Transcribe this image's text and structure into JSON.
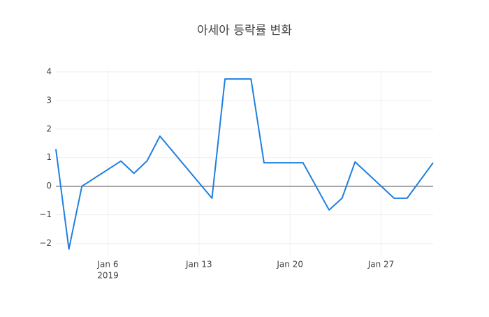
{
  "chart_data": {
    "type": "line",
    "title": "아세아 등락률 변화",
    "x": [
      "2019-01-02",
      "2019-01-03",
      "2019-01-04",
      "2019-01-07",
      "2019-01-08",
      "2019-01-09",
      "2019-01-10",
      "2019-01-14",
      "2019-01-15",
      "2019-01-17",
      "2019-01-18",
      "2019-01-21",
      "2019-01-23",
      "2019-01-24",
      "2019-01-25",
      "2019-01-28",
      "2019-01-29",
      "2019-01-31"
    ],
    "series": [
      {
        "color": "#1f7fe0",
        "values": [
          1.3,
          -2.2,
          0.0,
          0.88,
          0.45,
          0.88,
          1.75,
          -0.42,
          3.75,
          3.75,
          0.82,
          0.82,
          -0.83,
          -0.42,
          0.85,
          -0.42,
          -0.42,
          0.82
        ]
      }
    ],
    "xlim": [
      "2019-01-02",
      "2019-01-31"
    ],
    "xticks": [
      {
        "value": "2019-01-06",
        "label": "Jan 6"
      },
      {
        "value": "2019-01-13",
        "label": "Jan 13"
      },
      {
        "value": "2019-01-20",
        "label": "Jan 20"
      },
      {
        "value": "2019-01-27",
        "label": "Jan 27"
      }
    ],
    "xtick_year": "2019",
    "ylim": [
      -2.4,
      4.07
    ],
    "yticks": [
      {
        "value": -2,
        "label": "−2"
      },
      {
        "value": -1,
        "label": "−1"
      },
      0,
      1,
      2,
      3,
      4
    ],
    "grid": true,
    "zeroline": true
  }
}
